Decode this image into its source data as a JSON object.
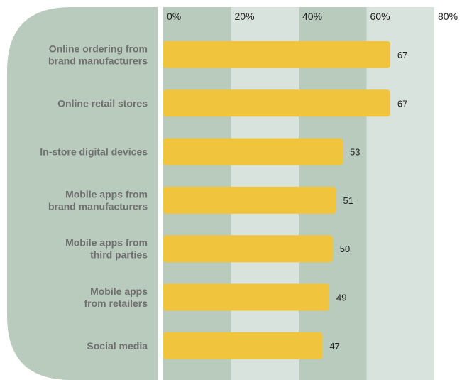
{
  "chart_data": {
    "type": "bar",
    "orientation": "horizontal",
    "title": "",
    "xlabel": "",
    "ylabel": "",
    "xlim": [
      0,
      80
    ],
    "x_ticks": [
      "0%",
      "20%",
      "40%",
      "60%",
      "80%"
    ],
    "categories": [
      [
        "Online ordering from",
        "brand manufacturers"
      ],
      [
        "Online retail stores"
      ],
      [
        "In-store digital devices"
      ],
      [
        "Mobile apps from",
        "brand manufacturers"
      ],
      [
        "Mobile apps from",
        "third parties"
      ],
      [
        "Mobile apps",
        "from retailers"
      ],
      [
        "Social media"
      ]
    ],
    "values": [
      67,
      67,
      53,
      51,
      50,
      49,
      47
    ],
    "value_labels": [
      "67",
      "67",
      "53",
      "51",
      "50",
      "49",
      "47"
    ],
    "grid": true,
    "legend": "none",
    "colors": {
      "bar": "#f1c43d",
      "label_panel": "#b8cbbd",
      "band_dark": "#b8cbbd",
      "band_light": "#d9e3de",
      "category_text": "#6f6f6f",
      "tick_text": "#222222"
    }
  }
}
